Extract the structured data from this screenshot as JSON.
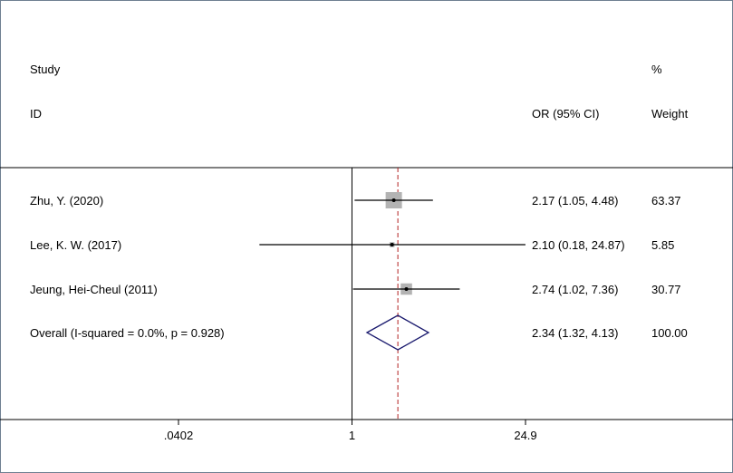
{
  "chart_data": {
    "type": "forest",
    "header": {
      "study_line1": "Study",
      "study_line2": "ID",
      "or_label": "OR (95% CI)",
      "weight_line1": "%",
      "weight_line2": "Weight"
    },
    "rows": [
      {
        "study": "Zhu, Y. (2020)",
        "or": 2.17,
        "lo": 1.05,
        "hi": 4.48,
        "ci_text": "2.17 (1.05, 4.48)",
        "weight": 63.37,
        "weight_text": "63.37",
        "kind": "study"
      },
      {
        "study": "Lee, K. W. (2017)",
        "or": 2.1,
        "lo": 0.18,
        "hi": 24.87,
        "ci_text": "2.10 (0.18, 24.87)",
        "weight": 5.85,
        "weight_text": "5.85",
        "kind": "study"
      },
      {
        "study": "Jeung, Hei-Cheul (2011)",
        "or": 2.74,
        "lo": 1.02,
        "hi": 7.36,
        "ci_text": "2.74 (1.02, 7.36)",
        "weight": 30.77,
        "weight_text": "30.77",
        "kind": "study"
      },
      {
        "study": "Overall  (I-squared = 0.0%, p = 0.928)",
        "or": 2.34,
        "lo": 1.32,
        "hi": 4.13,
        "ci_text": "2.34 (1.32, 4.13)",
        "weight": 100.0,
        "weight_text": "100.00",
        "kind": "overall"
      }
    ],
    "x_scale": "log",
    "xlim": [
      0.0402,
      24.9
    ],
    "x_ticks": [
      {
        "value": 0.0402,
        "label": ".0402"
      },
      {
        "value": 1,
        "label": "1"
      },
      {
        "value": 24.9,
        "label": "24.9"
      }
    ],
    "null_line": 1,
    "colors": {
      "box": "#b3b3b3",
      "diamond": "#1a1a6e",
      "overall_line": "#b22222",
      "axis": "#000000",
      "frame": "#6e7f91"
    }
  }
}
